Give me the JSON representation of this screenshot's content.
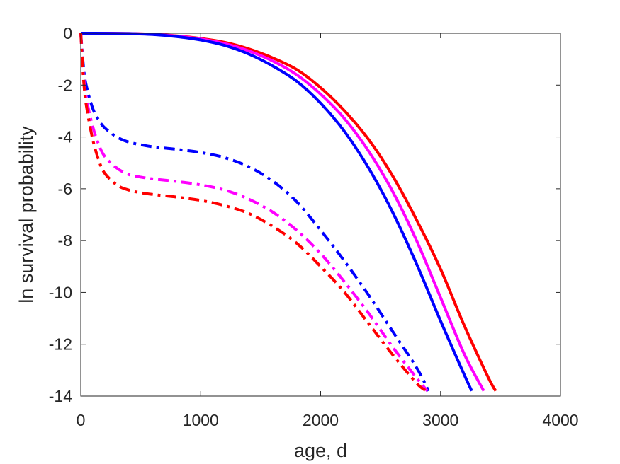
{
  "chart_data": {
    "type": "line",
    "xlabel": "age, d",
    "ylabel": "ln survival probability",
    "xlim": [
      0,
      4000
    ],
    "ylim": [
      -14,
      0
    ],
    "xticks": [
      "0",
      "1000",
      "2000",
      "3000",
      "4000"
    ],
    "yticks": [
      "0",
      "-2",
      "-4",
      "-6",
      "-8",
      "-10",
      "-12",
      "-14"
    ],
    "grid": false,
    "box": true,
    "series": [
      {
        "color": "#ff0000",
        "style": "solid",
        "x": [
          0,
          200,
          400,
          600,
          800,
          1000,
          1200,
          1400,
          1600,
          1800,
          2000,
          2200,
          2400,
          2600,
          2800,
          3000,
          3200,
          3400,
          3460
        ],
        "y": [
          0,
          -0.001,
          -0.01,
          -0.04,
          -0.1,
          -0.2,
          -0.35,
          -0.6,
          -0.95,
          -1.4,
          -2.1,
          -3.0,
          -4.1,
          -5.5,
          -7.2,
          -9.1,
          -11.3,
          -13.3,
          -13.8
        ]
      },
      {
        "color": "#ff00ff",
        "style": "solid",
        "x": [
          0,
          200,
          400,
          600,
          800,
          1000,
          1200,
          1400,
          1600,
          1800,
          2000,
          2200,
          2400,
          2600,
          2800,
          3000,
          3200,
          3360
        ],
        "y": [
          0,
          -0.001,
          -0.01,
          -0.04,
          -0.11,
          -0.22,
          -0.4,
          -0.68,
          -1.07,
          -1.6,
          -2.35,
          -3.3,
          -4.55,
          -6.1,
          -8.0,
          -10.2,
          -12.4,
          -13.8
        ]
      },
      {
        "color": "#0000ff",
        "style": "solid",
        "x": [
          0,
          200,
          400,
          600,
          800,
          1000,
          1200,
          1400,
          1600,
          1800,
          2000,
          2200,
          2400,
          2600,
          2800,
          3000,
          3200,
          3260
        ],
        "y": [
          0,
          -0.002,
          -0.015,
          -0.05,
          -0.13,
          -0.26,
          -0.47,
          -0.8,
          -1.26,
          -1.85,
          -2.7,
          -3.8,
          -5.2,
          -6.9,
          -8.9,
          -11.1,
          -13.2,
          -13.8
        ]
      },
      {
        "color": "#0000ff",
        "style": "dashdot",
        "x": [
          0,
          25,
          50,
          100,
          150,
          200,
          300,
          400,
          500,
          600,
          800,
          1000,
          1200,
          1400,
          1600,
          1800,
          2000,
          2200,
          2400,
          2600,
          2800,
          2900
        ],
        "y": [
          0,
          -1.4,
          -2.1,
          -2.9,
          -3.35,
          -3.65,
          -4.0,
          -4.2,
          -4.3,
          -4.38,
          -4.48,
          -4.6,
          -4.8,
          -5.15,
          -5.7,
          -6.5,
          -7.6,
          -8.8,
          -10.1,
          -11.5,
          -12.9,
          -13.8
        ]
      },
      {
        "color": "#ff00ff",
        "style": "dashdot",
        "x": [
          0,
          25,
          50,
          100,
          150,
          200,
          300,
          400,
          500,
          600,
          800,
          1000,
          1200,
          1400,
          1600,
          1800,
          2000,
          2200,
          2400,
          2600,
          2800,
          2890
        ],
        "y": [
          0,
          -1.7,
          -2.6,
          -3.6,
          -4.3,
          -4.75,
          -5.2,
          -5.45,
          -5.55,
          -5.62,
          -5.72,
          -5.85,
          -6.05,
          -6.4,
          -6.9,
          -7.6,
          -8.5,
          -9.6,
          -10.8,
          -12.1,
          -13.3,
          -13.8
        ]
      },
      {
        "color": "#ff0000",
        "style": "dashdot",
        "x": [
          0,
          25,
          50,
          100,
          150,
          200,
          300,
          400,
          500,
          600,
          800,
          1000,
          1200,
          1400,
          1600,
          1800,
          2000,
          2200,
          2400,
          2600,
          2800,
          2880
        ],
        "y": [
          0,
          -1.9,
          -2.9,
          -4.1,
          -4.9,
          -5.4,
          -5.85,
          -6.05,
          -6.15,
          -6.22,
          -6.32,
          -6.45,
          -6.65,
          -6.95,
          -7.45,
          -8.1,
          -9.0,
          -10.0,
          -11.2,
          -12.4,
          -13.5,
          -13.8
        ]
      }
    ]
  }
}
